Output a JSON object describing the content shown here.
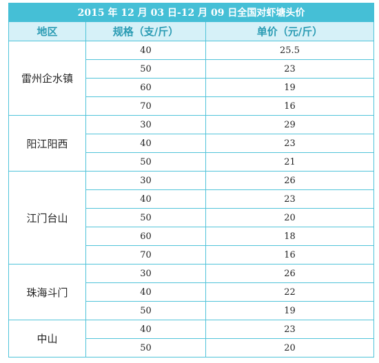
{
  "title": "2015 年 12 月 03 日-12 月 09 日全国对虾塘头价",
  "headers": {
    "region": "地区",
    "spec": "规格（支/斤）",
    "price": "单价（元/斤）"
  },
  "groups": [
    {
      "region": "雷州企水镇",
      "rows": [
        {
          "spec": "40",
          "price": "25.5"
        },
        {
          "spec": "50",
          "price": "23"
        },
        {
          "spec": "60",
          "price": "19"
        },
        {
          "spec": "70",
          "price": "16"
        }
      ]
    },
    {
      "region": "阳江阳西",
      "rows": [
        {
          "spec": "30",
          "price": "29"
        },
        {
          "spec": "40",
          "price": "23"
        },
        {
          "spec": "50",
          "price": "21"
        }
      ]
    },
    {
      "region": "江门台山",
      "rows": [
        {
          "spec": "30",
          "price": "26"
        },
        {
          "spec": "40",
          "price": "23"
        },
        {
          "spec": "50",
          "price": "20"
        },
        {
          "spec": "60",
          "price": "18"
        },
        {
          "spec": "70",
          "price": "16"
        }
      ]
    },
    {
      "region": "珠海斗门",
      "rows": [
        {
          "spec": "30",
          "price": "26"
        },
        {
          "spec": "40",
          "price": "22"
        },
        {
          "spec": "50",
          "price": "19"
        }
      ]
    },
    {
      "region": "中山",
      "rows": [
        {
          "spec": "40",
          "price": "23"
        },
        {
          "spec": "50",
          "price": "20"
        }
      ]
    }
  ]
}
